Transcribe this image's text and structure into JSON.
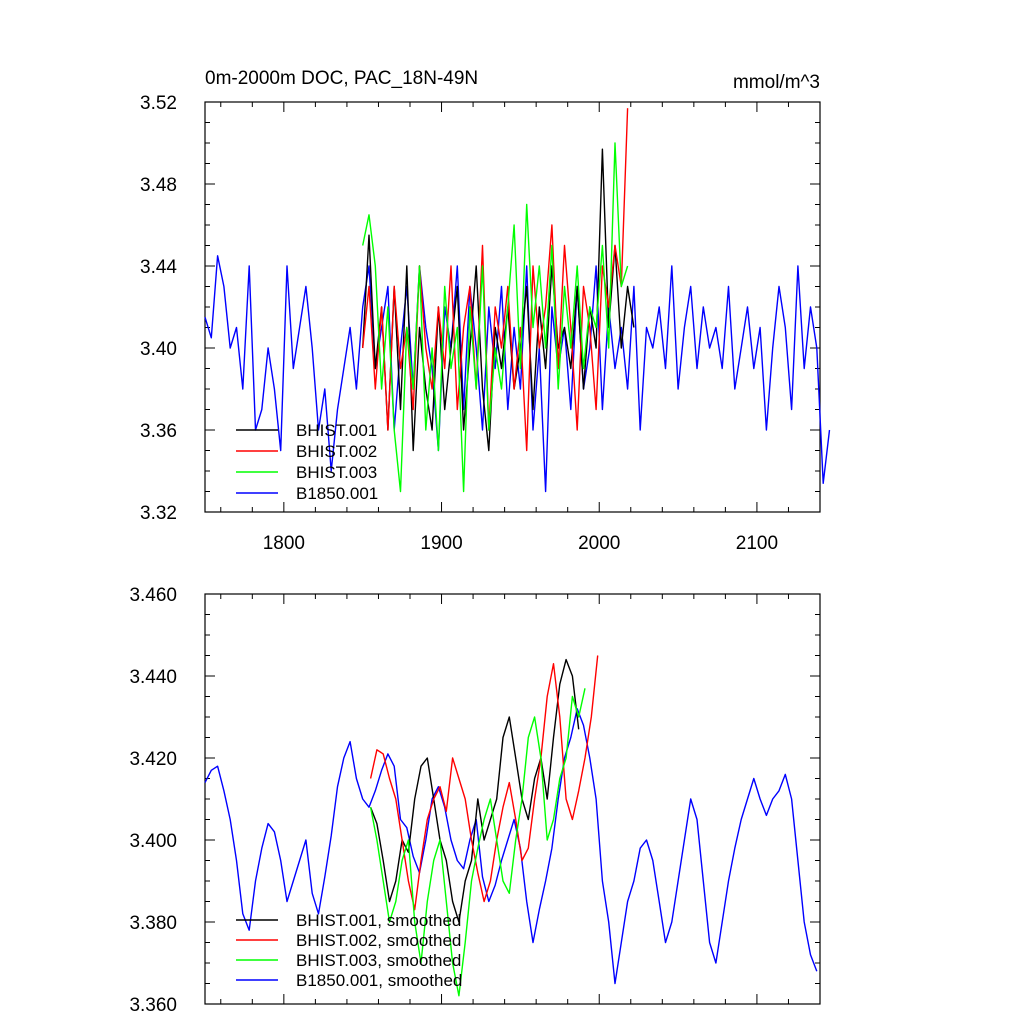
{
  "chart_data": [
    {
      "type": "line",
      "title": "0m-2000m DOC, PAC_18N-49N",
      "units": "mmol/m^3",
      "xlim": [
        1750,
        2140
      ],
      "ylim": [
        3.32,
        3.52
      ],
      "xticks": [
        1800,
        1900,
        2000,
        2100
      ],
      "xtick_labels": [
        "1800",
        "1900",
        "2000",
        "2100"
      ],
      "yticks": [
        3.32,
        3.36,
        3.4,
        3.44,
        3.48,
        3.52
      ],
      "ytick_labels": [
        "3.32",
        "3.36",
        "3.40",
        "3.44",
        "3.48",
        "3.52"
      ],
      "legend_position": "bottom-left",
      "series": [
        {
          "name": "B1850.001",
          "color": "#0000ff",
          "x_start": 1750,
          "step": 4,
          "values": [
            3.415,
            3.405,
            3.445,
            3.43,
            3.4,
            3.41,
            3.38,
            3.44,
            3.36,
            3.37,
            3.4,
            3.38,
            3.35,
            3.44,
            3.39,
            3.41,
            3.43,
            3.4,
            3.36,
            3.38,
            3.34,
            3.37,
            3.39,
            3.41,
            3.38,
            3.42,
            3.44,
            3.39,
            3.41,
            3.43,
            3.36,
            3.4,
            3.43,
            3.38,
            3.44,
            3.41,
            3.39,
            3.35,
            3.42,
            3.4,
            3.44,
            3.37,
            3.43,
            3.4,
            3.36,
            3.42,
            3.39,
            3.43,
            3.37,
            3.41,
            3.38,
            3.44,
            3.36,
            3.4,
            3.33,
            3.42,
            3.39,
            3.41,
            3.37,
            3.43,
            3.38,
            3.4,
            3.44,
            3.37,
            3.42,
            3.39,
            3.41,
            3.38,
            3.43,
            3.36,
            3.41,
            3.4,
            3.42,
            3.39,
            3.44,
            3.38,
            3.41,
            3.43,
            3.39,
            3.42,
            3.4,
            3.41,
            3.39,
            3.43,
            3.38,
            3.4,
            3.42,
            3.39,
            3.41,
            3.36,
            3.4,
            3.43,
            3.41,
            3.37,
            3.44,
            3.39,
            3.42,
            3.4,
            3.334,
            3.36
          ]
        },
        {
          "name": "BHIST.001",
          "color": "#000000",
          "x_start": 1850,
          "step": 4,
          "values": [
            3.4,
            3.455,
            3.39,
            3.42,
            3.36,
            3.43,
            3.37,
            3.44,
            3.35,
            3.41,
            3.38,
            3.36,
            3.42,
            3.37,
            3.4,
            3.43,
            3.36,
            3.4,
            3.44,
            3.38,
            3.35,
            3.41,
            3.39,
            3.42,
            3.38,
            3.4,
            3.43,
            3.37,
            3.42,
            3.39,
            3.44,
            3.4,
            3.41,
            3.39,
            3.43,
            3.38,
            3.42,
            3.4,
            3.497,
            3.41,
            3.45,
            3.4,
            3.43,
            3.41
          ]
        },
        {
          "name": "BHIST.002",
          "color": "#ff0000",
          "x_start": 1850,
          "step": 4,
          "values": [
            3.4,
            3.43,
            3.38,
            3.42,
            3.36,
            3.43,
            3.39,
            3.41,
            3.37,
            3.44,
            3.4,
            3.38,
            3.42,
            3.39,
            3.44,
            3.37,
            3.41,
            3.43,
            3.38,
            3.45,
            3.36,
            3.42,
            3.4,
            3.43,
            3.38,
            3.41,
            3.35,
            3.44,
            3.4,
            3.42,
            3.46,
            3.39,
            3.45,
            3.41,
            3.36,
            3.43,
            3.41,
            3.37,
            3.44,
            3.42,
            3.45,
            3.43,
            3.517
          ]
        },
        {
          "name": "BHIST.003",
          "color": "#00ff00",
          "x_start": 1850,
          "step": 4,
          "values": [
            3.45,
            3.465,
            3.44,
            3.38,
            3.42,
            3.36,
            3.33,
            3.41,
            3.38,
            3.44,
            3.36,
            3.4,
            3.35,
            3.43,
            3.39,
            3.41,
            3.33,
            3.42,
            3.38,
            3.44,
            3.36,
            3.4,
            3.38,
            3.42,
            3.46,
            3.39,
            3.47,
            3.41,
            3.44,
            3.4,
            3.45,
            3.38,
            3.43,
            3.4,
            3.44,
            3.39,
            3.42,
            3.41,
            3.45,
            3.4,
            3.5,
            3.43,
            3.44
          ]
        }
      ]
    },
    {
      "type": "line",
      "title": "",
      "xlim": [
        1750,
        2140
      ],
      "ylim": [
        3.36,
        3.46
      ],
      "xticks": [
        1800,
        1900,
        2000,
        2100
      ],
      "yticks": [
        3.36,
        3.38,
        3.4,
        3.42,
        3.44,
        3.46
      ],
      "ytick_labels": [
        "3.360",
        "3.380",
        "3.400",
        "3.420",
        "3.440",
        "3.460"
      ],
      "legend_position": "bottom-left",
      "series": [
        {
          "name": "B1850.001, smoothed",
          "color": "#0000ff",
          "x_start": 1750,
          "step": 4,
          "values": [
            3.414,
            3.417,
            3.418,
            3.412,
            3.405,
            3.395,
            3.382,
            3.378,
            3.39,
            3.398,
            3.404,
            3.402,
            3.395,
            3.385,
            3.39,
            3.395,
            3.4,
            3.387,
            3.382,
            3.391,
            3.401,
            3.413,
            3.42,
            3.424,
            3.415,
            3.41,
            3.408,
            3.412,
            3.417,
            3.421,
            3.418,
            3.405,
            3.403,
            3.396,
            3.392,
            3.4,
            3.41,
            3.413,
            3.408,
            3.4,
            3.395,
            3.393,
            3.4,
            3.405,
            3.391,
            3.385,
            3.389,
            3.395,
            3.4,
            3.405,
            3.398,
            3.385,
            3.375,
            3.383,
            3.39,
            3.398,
            3.41,
            3.42,
            3.425,
            3.432,
            3.428,
            3.42,
            3.41,
            3.39,
            3.38,
            3.365,
            3.375,
            3.385,
            3.39,
            3.398,
            3.4,
            3.395,
            3.385,
            3.375,
            3.38,
            3.39,
            3.4,
            3.41,
            3.405,
            3.39,
            3.375,
            3.37,
            3.38,
            3.39,
            3.398,
            3.405,
            3.41,
            3.415,
            3.41,
            3.406,
            3.41,
            3.412,
            3.416,
            3.41,
            3.395,
            3.38,
            3.372,
            3.368
          ]
        },
        {
          "name": "BHIST.001, smoothed",
          "color": "#000000",
          "x_start": 1855,
          "step": 4,
          "values": [
            3.408,
            3.404,
            3.395,
            3.385,
            3.39,
            3.4,
            3.397,
            3.41,
            3.418,
            3.42,
            3.41,
            3.4,
            3.395,
            3.385,
            3.38,
            3.39,
            3.395,
            3.41,
            3.4,
            3.405,
            3.41,
            3.425,
            3.43,
            3.42,
            3.41,
            3.405,
            3.415,
            3.42,
            3.41,
            3.425,
            3.438,
            3.444,
            3.44,
            3.427
          ]
        },
        {
          "name": "BHIST.002, smoothed",
          "color": "#ff0000",
          "x_start": 1855,
          "step": 4,
          "values": [
            3.415,
            3.422,
            3.421,
            3.415,
            3.41,
            3.4,
            3.39,
            3.383,
            3.395,
            3.405,
            3.41,
            3.413,
            3.407,
            3.42,
            3.415,
            3.41,
            3.4,
            3.392,
            3.385,
            3.39,
            3.4,
            3.408,
            3.414,
            3.405,
            3.395,
            3.398,
            3.41,
            3.42,
            3.435,
            3.443,
            3.43,
            3.41,
            3.405,
            3.412,
            3.42,
            3.43,
            3.445
          ]
        },
        {
          "name": "BHIST.003, smoothed",
          "color": "#00ff00",
          "x_start": 1855,
          "step": 4,
          "values": [
            3.408,
            3.4,
            3.39,
            3.38,
            3.385,
            3.395,
            3.4,
            3.38,
            3.37,
            3.385,
            3.395,
            3.4,
            3.385,
            3.37,
            3.362,
            3.375,
            3.39,
            3.398,
            3.405,
            3.41,
            3.4,
            3.39,
            3.387,
            3.4,
            3.41,
            3.425,
            3.43,
            3.42,
            3.4,
            3.405,
            3.415,
            3.42,
            3.435,
            3.43,
            3.437
          ]
        }
      ]
    }
  ]
}
